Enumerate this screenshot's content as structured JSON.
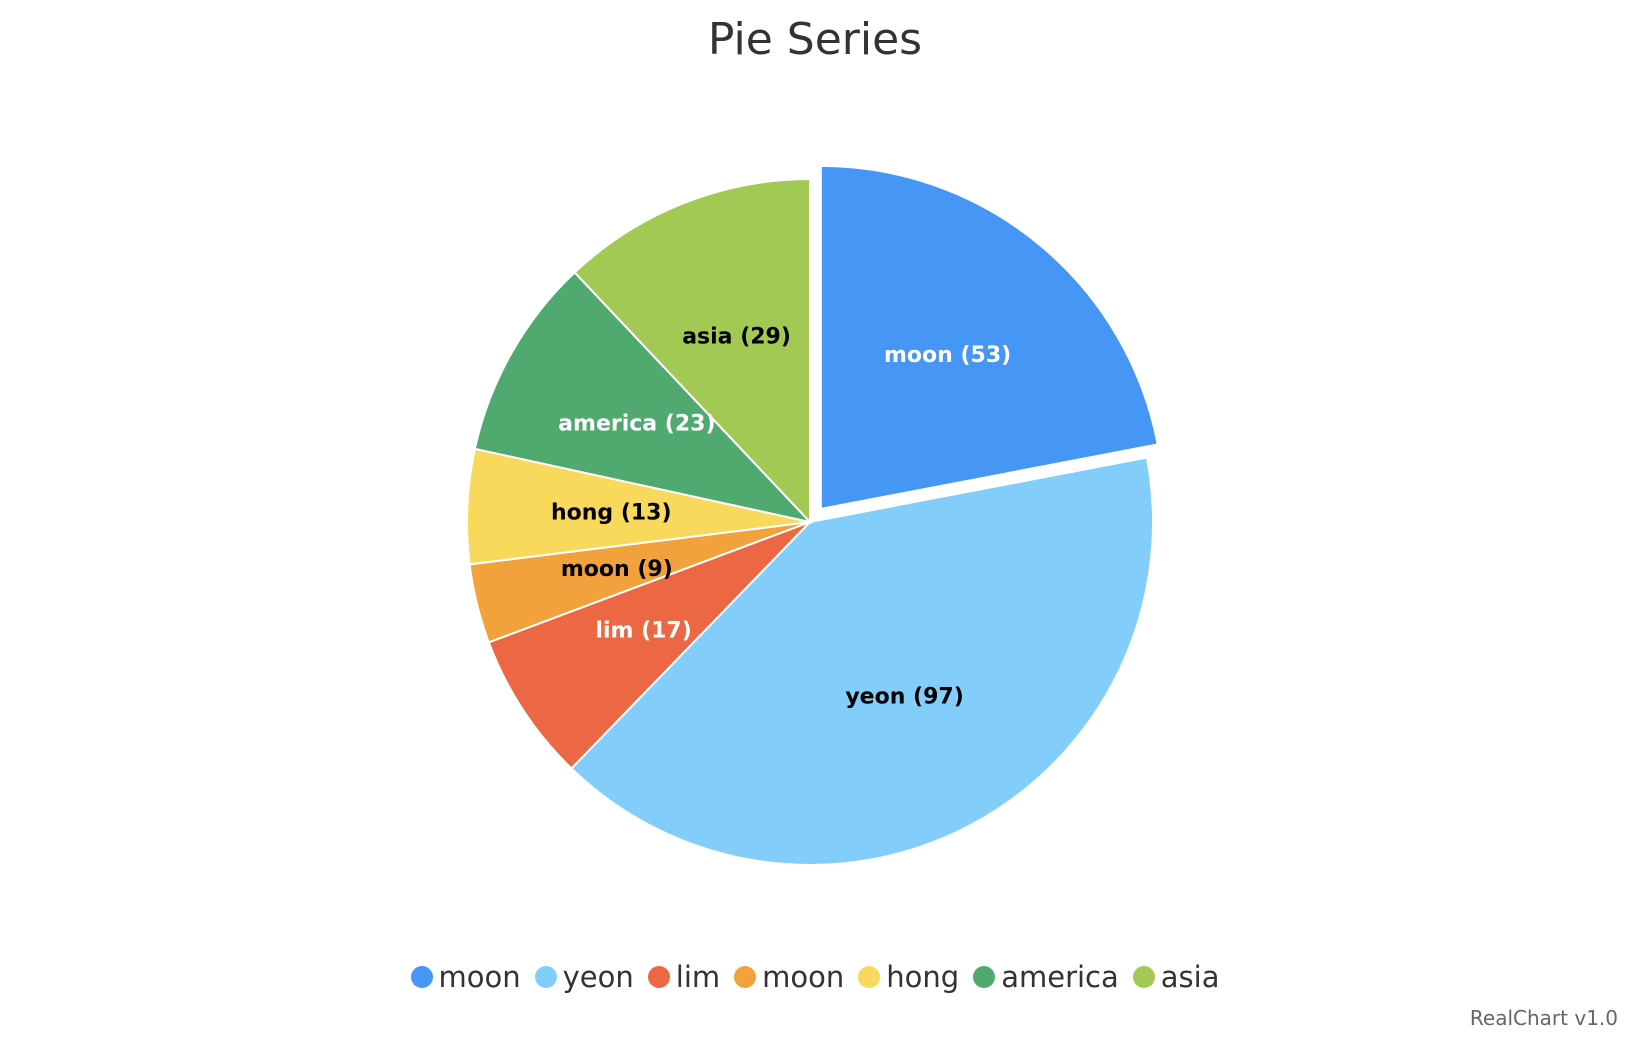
{
  "chart_data": {
    "type": "pie",
    "title": "Pie Series",
    "categories": [
      "moon",
      "yeon",
      "lim",
      "moon",
      "hong",
      "america",
      "asia"
    ],
    "values": [
      53,
      97,
      17,
      9,
      13,
      23,
      29
    ],
    "colors": [
      "#4596f5",
      "#83cdfa",
      "#ec6744",
      "#f2a23c",
      "#f8d95c",
      "#50a96f",
      "#a1c954"
    ],
    "label_colors": [
      "#ffffff",
      "#000000",
      "#ffffff",
      "#000000",
      "#000000",
      "#ffffff",
      "#000000"
    ],
    "exploded": [
      true,
      false,
      false,
      false,
      false,
      false,
      false
    ],
    "start_angle": 0,
    "direction": "clockwise",
    "legend_position": "bottom"
  },
  "credits": "RealChart v1.0"
}
